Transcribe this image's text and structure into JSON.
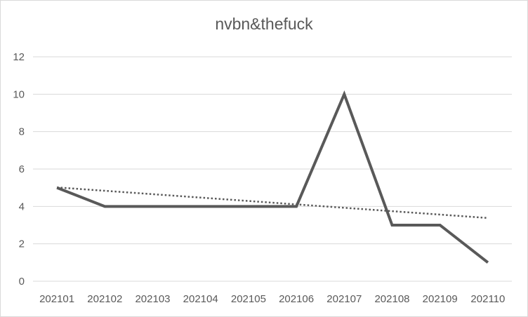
{
  "chart_data": {
    "type": "line",
    "title": "nvbn&thefuck",
    "xlabel": "",
    "ylabel": "",
    "categories": [
      "202101",
      "202102",
      "202103",
      "202104",
      "202105",
      "202106",
      "202107",
      "202108",
      "202109",
      "202110"
    ],
    "series": [
      {
        "values": [
          5,
          4,
          4,
          4,
          4,
          4,
          10,
          3,
          3,
          1
        ],
        "color": "#595959",
        "style": "solid"
      }
    ],
    "trendline": {
      "type": "linear",
      "style": "dotted",
      "color": "#595959"
    },
    "ylim": [
      0,
      12
    ],
    "yticks": [
      0,
      2,
      4,
      6,
      8,
      10,
      12
    ],
    "grid": "horizontal",
    "legend": "none"
  }
}
